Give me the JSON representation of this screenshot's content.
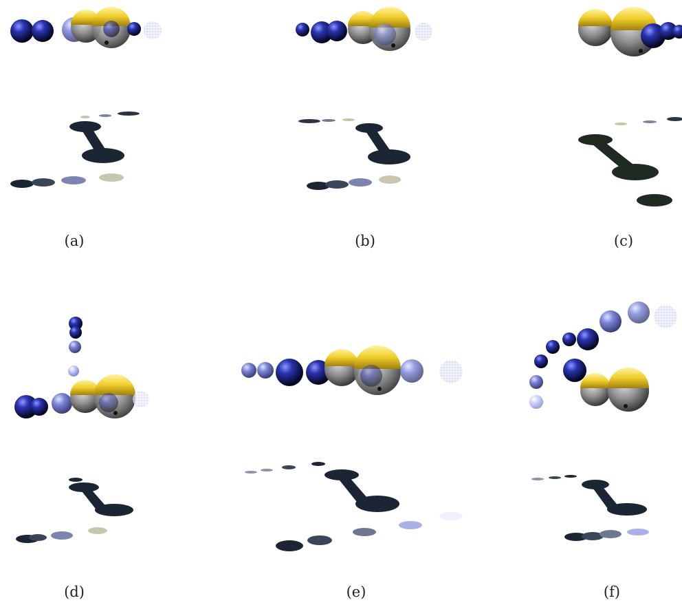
{
  "figure": {
    "background": "#ffffff",
    "panels": [
      {
        "id": "a",
        "caption": "(a)"
      },
      {
        "id": "b",
        "caption": "(b)"
      },
      {
        "id": "c",
        "caption": "(c)"
      },
      {
        "id": "d",
        "caption": "(d)"
      },
      {
        "id": "e",
        "caption": "(e)"
      },
      {
        "id": "f",
        "caption": "(f)"
      }
    ],
    "colors": {
      "blue_sphere": "#1a1f8a",
      "gray_sphere": "#8c8c8c",
      "gold_cap": "#f4d233",
      "shadow": "#1c2534",
      "dark_shadow": "#1e2a22"
    },
    "elements": {
      "spheres": "blue-gray-gold-spheres",
      "shadows": "floor-shadows"
    }
  }
}
